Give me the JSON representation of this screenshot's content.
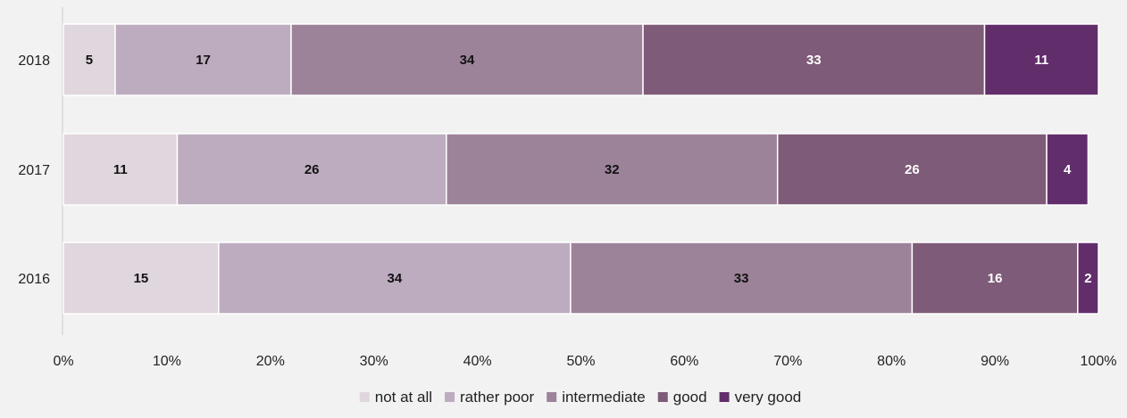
{
  "chart_data": {
    "type": "bar",
    "orientation": "horizontal",
    "stacked": true,
    "title": "",
    "xlabel": "",
    "ylabel": "",
    "xlim": [
      0,
      100
    ],
    "x_ticks": [
      "0%",
      "10%",
      "20%",
      "30%",
      "40%",
      "50%",
      "60%",
      "70%",
      "80%",
      "90%",
      "100%"
    ],
    "categories": [
      "2018",
      "2017",
      "2016"
    ],
    "series": [
      {
        "name": "not at all",
        "color": "#e0d6de",
        "label_color": "#111111",
        "values": [
          5,
          11,
          15
        ]
      },
      {
        "name": "rather poor",
        "color": "#bdacbf",
        "label_color": "#111111",
        "values": [
          17,
          26,
          34
        ]
      },
      {
        "name": "intermediate",
        "color": "#9d8399",
        "label_color": "#111111",
        "values": [
          34,
          32,
          33
        ]
      },
      {
        "name": "good",
        "color": "#7e5b78",
        "label_color": "#ffffff",
        "values": [
          33,
          26,
          16
        ]
      },
      {
        "name": "very good",
        "color": "#612e6b",
        "label_color": "#ffffff",
        "values": [
          11,
          4,
          2
        ]
      }
    ],
    "grid": false,
    "legend_position": "bottom"
  },
  "colors": {
    "background": "#f2f2f2",
    "axis": "#cccccc",
    "separator": "#ffffff"
  }
}
